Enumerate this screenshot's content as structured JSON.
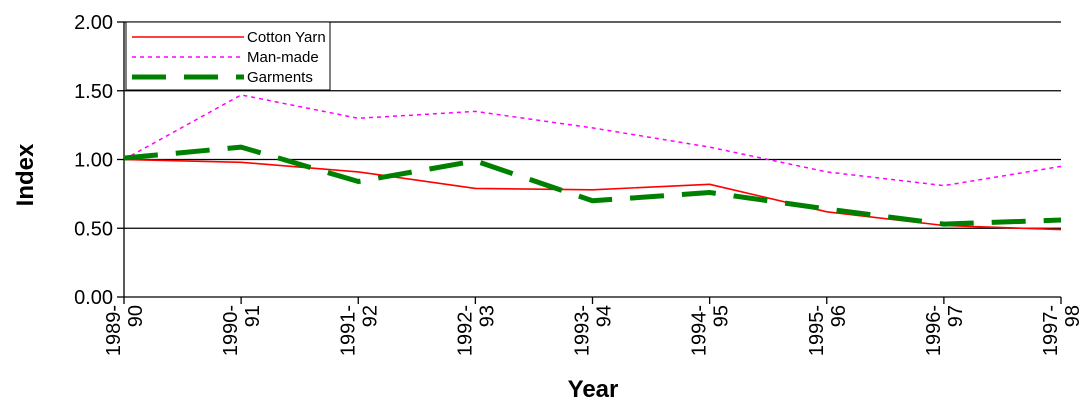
{
  "chart_data": {
    "type": "line",
    "title": "",
    "xlabel": "Year",
    "ylabel": "Index",
    "categories": [
      [
        "1989-",
        "90"
      ],
      [
        "1990-",
        "91"
      ],
      [
        "1991-",
        "92"
      ],
      [
        "1992-",
        "93"
      ],
      [
        "1993-",
        "94"
      ],
      [
        "1994-",
        "95"
      ],
      [
        "1995-",
        "96"
      ],
      [
        "1996-",
        "97"
      ],
      [
        "1997-",
        "98"
      ]
    ],
    "ylim": [
      0,
      2
    ],
    "yticks": [
      "0.00",
      "0.50",
      "1.00",
      "1.50",
      "2.00"
    ],
    "grid": "horizontal",
    "legend_position": "top-left",
    "series": [
      {
        "name": "Cotton Yarn",
        "color": "#ff0000",
        "style": "solid",
        "values": [
          1.0,
          0.98,
          0.91,
          0.79,
          0.78,
          0.82,
          0.62,
          0.52,
          0.49
        ]
      },
      {
        "name": "Man-made",
        "color": "#ff00ff",
        "style": "dotted",
        "values": [
          1.0,
          1.47,
          1.3,
          1.35,
          1.23,
          1.09,
          0.91,
          0.81,
          0.95
        ]
      },
      {
        "name": "Garments",
        "color": "#008000",
        "style": "dashed",
        "values": [
          1.01,
          1.09,
          0.84,
          0.99,
          0.7,
          0.76,
          0.64,
          0.53,
          0.56
        ]
      }
    ]
  }
}
